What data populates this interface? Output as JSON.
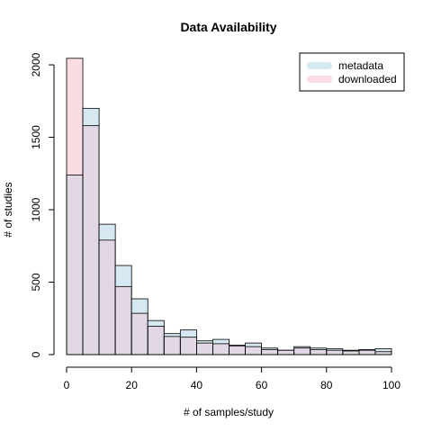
{
  "chart_data": {
    "type": "histogram",
    "title": "Data Availability",
    "xlabel": "# of samples/study",
    "ylabel": "# of studies",
    "xlim": [
      0,
      100
    ],
    "ylim": [
      0,
      2050
    ],
    "x_ticks": [
      "0",
      "20",
      "40",
      "60",
      "80",
      "100"
    ],
    "y_ticks": [
      "0",
      "500",
      "1000",
      "1500",
      "2000"
    ],
    "x_tick_values": [
      0,
      20,
      40,
      60,
      80,
      100
    ],
    "y_tick_values": [
      0,
      500,
      1000,
      1500,
      2000
    ],
    "bin_edges": [
      0,
      5,
      10,
      15,
      20,
      25,
      30,
      35,
      40,
      45,
      50,
      55,
      60,
      65,
      70,
      75,
      80,
      85,
      90,
      95,
      100
    ],
    "series": [
      {
        "name": "metadata",
        "color": "#d6e9f2",
        "values": [
          1240,
          1700,
          900,
          615,
          385,
          235,
          145,
          170,
          95,
          105,
          65,
          80,
          45,
          30,
          55,
          45,
          40,
          30,
          35,
          40
        ]
      },
      {
        "name": "downloaded",
        "color": "#f9dde3",
        "values": [
          2045,
          1580,
          790,
          470,
          285,
          195,
          125,
          120,
          80,
          75,
          60,
          55,
          35,
          30,
          45,
          35,
          30,
          25,
          30,
          20
        ]
      }
    ],
    "overlap_color": "#e2d8e5",
    "legend": {
      "position": "top-right",
      "entries": [
        {
          "label": "metadata",
          "color": "#d6e9f2"
        },
        {
          "label": "downloaded",
          "color": "#f9dde3"
        }
      ]
    },
    "grid": false
  }
}
